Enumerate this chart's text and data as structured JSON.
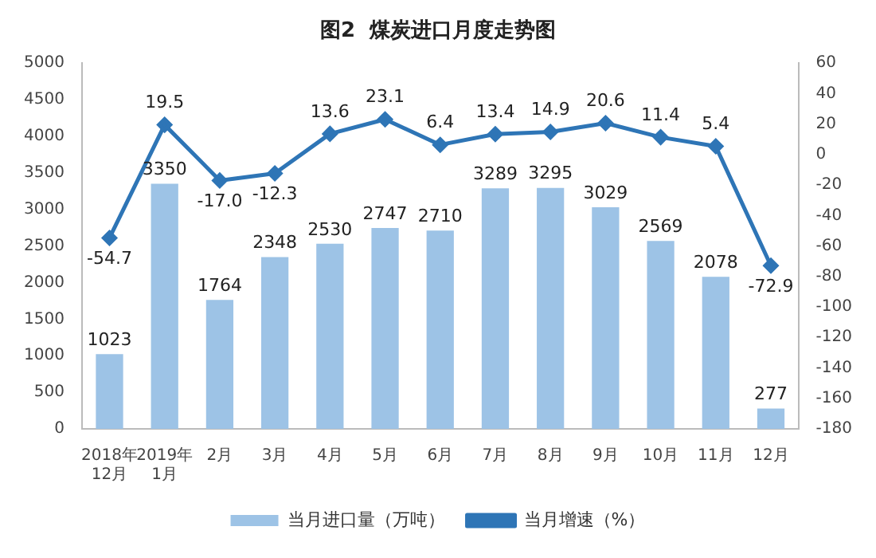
{
  "chart_data": {
    "type": "bar",
    "title": "图2  煤炭进口月度走势图",
    "categories": [
      "2018年\n12月",
      "2019年\n1月",
      "2月",
      "3月",
      "4月",
      "5月",
      "6月",
      "7月",
      "8月",
      "9月",
      "10月",
      "11月",
      "12月"
    ],
    "series": [
      {
        "name": "当月进口量（万吨）",
        "color": "#9dc3e6",
        "values": [
          1023,
          3350,
          1764,
          2348,
          2530,
          2747,
          2710,
          3289,
          3295,
          3029,
          2569,
          2078,
          277
        ]
      },
      {
        "name": "当月增速（%）",
        "type": "line",
        "axis": "y2",
        "color": "#2e75b6",
        "values": [
          -54.7,
          19.5,
          -17.0,
          -12.3,
          13.6,
          23.1,
          6.4,
          13.4,
          14.9,
          20.6,
          11.4,
          5.4,
          -72.9
        ],
        "value_labels": [
          "-54.7",
          "19.5",
          "-17.0",
          "-12.3",
          "13.6",
          "23.1",
          "6.4",
          "13.4",
          "14.9",
          "20.6",
          "11.4",
          "5.4",
          "-72.9"
        ]
      }
    ],
    "ylim": [
      0,
      5000
    ],
    "yticks": [
      0,
      500,
      1000,
      1500,
      2000,
      2500,
      3000,
      3500,
      4000,
      4500,
      5000
    ],
    "y2lim": [
      -180,
      60
    ],
    "y2ticks": [
      -180,
      -160,
      -140,
      -120,
      -100,
      -80,
      -60,
      -40,
      -20,
      0,
      20,
      40,
      60
    ],
    "data_labels": true,
    "grid": false,
    "legend": "bottom",
    "marker": "diamond",
    "line_style": "solid"
  }
}
